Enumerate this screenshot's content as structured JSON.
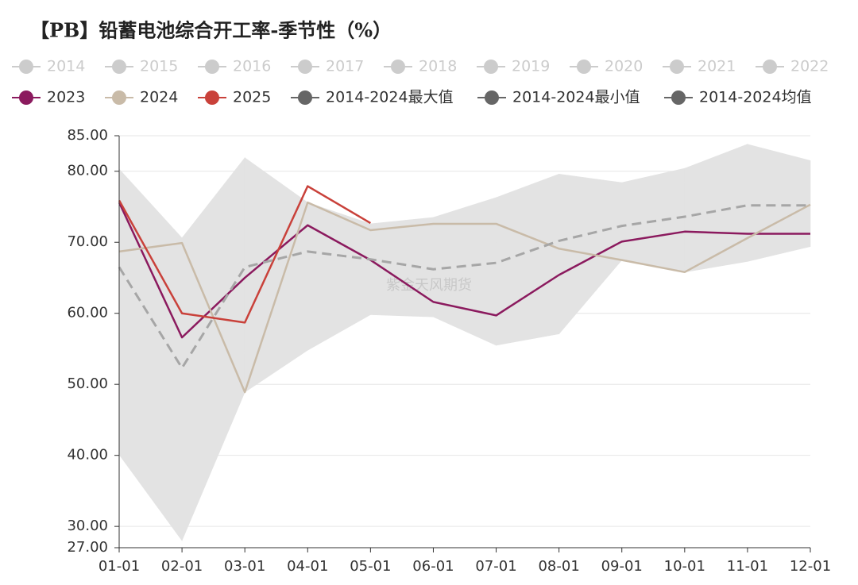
{
  "chart_data": {
    "type": "line",
    "title": "【PB】铅蓄电池综合开工率-季节性（%）",
    "watermark": "紫金天风期货",
    "categories": [
      "01-01",
      "02-01",
      "03-01",
      "04-01",
      "05-01",
      "06-01",
      "07-01",
      "08-01",
      "09-01",
      "10-01",
      "11-01",
      "12-01"
    ],
    "ylim": [
      27,
      85
    ],
    "yticks": [
      {
        "value": 27,
        "label": "27.00"
      },
      {
        "value": 30,
        "label": "30.00"
      },
      {
        "value": 40,
        "label": "40.00"
      },
      {
        "value": 50,
        "label": "50.00"
      },
      {
        "value": 60,
        "label": "60.00"
      },
      {
        "value": 70,
        "label": "70.00"
      },
      {
        "value": 80,
        "label": "80.00"
      },
      {
        "value": 85,
        "label": "85.00"
      }
    ],
    "grid": true,
    "legend": "top",
    "series": [
      {
        "name": "2014",
        "color": "#cccccc",
        "hidden": true
      },
      {
        "name": "2015",
        "color": "#cccccc",
        "hidden": true
      },
      {
        "name": "2016",
        "color": "#cccccc",
        "hidden": true
      },
      {
        "name": "2017",
        "color": "#cccccc",
        "hidden": true
      },
      {
        "name": "2018",
        "color": "#cccccc",
        "hidden": true
      },
      {
        "name": "2019",
        "color": "#cccccc",
        "hidden": true
      },
      {
        "name": "2020",
        "color": "#cccccc",
        "hidden": true
      },
      {
        "name": "2021",
        "color": "#cccccc",
        "hidden": true
      },
      {
        "name": "2022",
        "color": "#cccccc",
        "hidden": true
      },
      {
        "name": "2023",
        "color": "#8b1a5e",
        "values": [
          75.6,
          56.6,
          65.0,
          72.4,
          67.5,
          61.6,
          59.7,
          65.4,
          70.1,
          71.5,
          71.2,
          71.2
        ]
      },
      {
        "name": "2024",
        "color": "#c9bba8",
        "values": [
          68.7,
          69.9,
          48.9,
          75.6,
          71.7,
          72.6,
          72.6,
          69.1,
          67.5,
          65.8,
          70.6,
          75.3
        ]
      },
      {
        "name": "2025",
        "color": "#c9413a",
        "values": [
          75.9,
          60.0,
          58.7,
          77.9,
          72.7,
          null,
          null,
          null,
          null,
          null,
          null,
          null
        ]
      },
      {
        "name": "2014-2024最大值",
        "color": "#666666",
        "display": "band-upper",
        "values": [
          80.3,
          70.6,
          81.9,
          75.6,
          72.6,
          73.5,
          76.3,
          79.6,
          78.4,
          80.4,
          83.8,
          81.5
        ]
      },
      {
        "name": "2014-2024最小值",
        "color": "#666666",
        "display": "band-lower",
        "values": [
          40.1,
          28.0,
          48.9,
          54.8,
          59.8,
          59.5,
          55.5,
          57.1,
          67.5,
          65.8,
          67.3,
          69.4
        ]
      },
      {
        "name": "2014-2024均值",
        "color": "#666666",
        "line_color": "#a6a6a6",
        "dashed": true,
        "values": [
          66.5,
          52.3,
          66.5,
          68.7,
          67.6,
          66.2,
          67.1,
          70.2,
          72.3,
          73.6,
          75.2,
          75.2
        ]
      }
    ]
  }
}
